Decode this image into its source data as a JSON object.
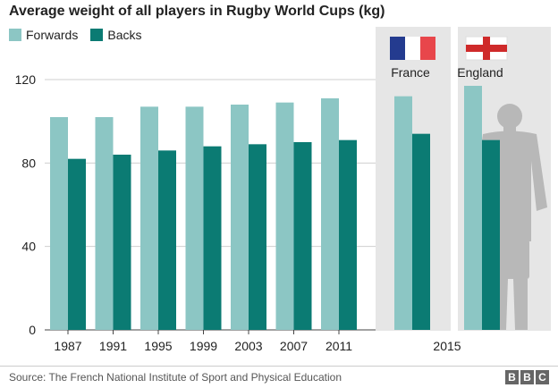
{
  "title": "Average weight of all players in Rugby World Cups (kg)",
  "source": "Source: The French National Institute of Sport and Physical Education",
  "logo": [
    "B",
    "B",
    "C"
  ],
  "colors": {
    "forwards": "#8cc6c4",
    "backs": "#0b7b73",
    "panel": "#e6e6e6",
    "silhouette": "#b8b8b8"
  },
  "chart_data": {
    "type": "bar",
    "title": "Average weight of all players in Rugby World Cups (kg)",
    "legend": [
      "Forwards",
      "Backs"
    ],
    "legend_position": "top-left",
    "grid": true,
    "ylim": [
      0,
      130
    ],
    "yticks": [
      "0",
      "40",
      "80",
      "120"
    ],
    "categories": [
      "1987",
      "1991",
      "1995",
      "1999",
      "2003",
      "2007",
      "2011"
    ],
    "series": [
      {
        "name": "Forwards",
        "values": [
          102,
          102,
          107,
          107,
          108,
          109,
          111
        ]
      },
      {
        "name": "Backs",
        "values": [
          82,
          84,
          86,
          88,
          89,
          90,
          91
        ]
      }
    ],
    "group_2015": {
      "label": "2015",
      "teams": [
        {
          "name": "France",
          "flag": "france-flag",
          "forwards": 112,
          "backs": 94
        },
        {
          "name": "England",
          "flag": "england-flag",
          "forwards": 117,
          "backs": 91
        }
      ]
    }
  }
}
